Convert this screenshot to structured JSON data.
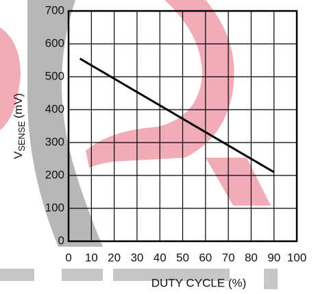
{
  "chart_data": {
    "type": "line",
    "ylabel": {
      "main": "V",
      "sub": "SENSE",
      "unit": "(mV)"
    },
    "xlabel": "DUTY CYCLE (%)",
    "x": [
      5,
      90
    ],
    "series": [
      {
        "color": "#000000",
        "values": [
          555,
          210
        ]
      }
    ],
    "xlim": [
      0,
      100
    ],
    "xticks": [
      0,
      10,
      20,
      30,
      40,
      50,
      60,
      70,
      80,
      90,
      100
    ],
    "ylim": [
      0,
      700
    ],
    "yticks": [
      0,
      100,
      200,
      300,
      400,
      500,
      600,
      700
    ],
    "grid": true
  }
}
